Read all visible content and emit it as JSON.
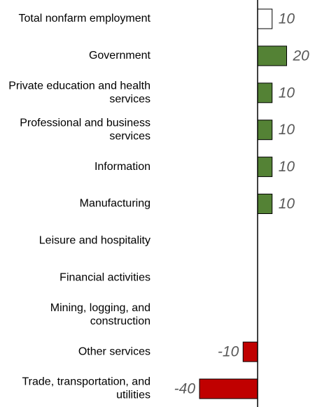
{
  "chart_data": {
    "type": "bar",
    "orientation": "horizontal",
    "categories": [
      "Total nonfarm employment",
      "Government",
      "Private education and health services",
      "Professional and business services",
      "Information",
      "Manufacturing",
      "Leisure and hospitality",
      "Financial activities",
      "Mining, logging, and construction",
      "Other services",
      "Trade, transportation, and utilities"
    ],
    "category_lines": [
      [
        "Total nonfarm employment"
      ],
      [
        "Government"
      ],
      [
        "Private education and health",
        "services"
      ],
      [
        "Professional and business",
        "services"
      ],
      [
        "Information"
      ],
      [
        "Manufacturing"
      ],
      [
        "Leisure and hospitality"
      ],
      [
        "Financial activities"
      ],
      [
        "Mining, logging, and",
        "construction"
      ],
      [
        "Other services"
      ],
      [
        "Trade, transportation, and",
        "utilities"
      ]
    ],
    "values": [
      10,
      20,
      10,
      10,
      10,
      10,
      0,
      0,
      0,
      -10,
      -40
    ],
    "data_labels": [
      "10",
      "20",
      "10",
      "10",
      "10",
      "10",
      "",
      "",
      "",
      "-10",
      "-40"
    ],
    "colors": {
      "total": "#ffffff",
      "positive": "#548235",
      "negative": "#c00000",
      "bar_border": "#000000",
      "axis": "#000000",
      "value_text": "#595959"
    },
    "title": "",
    "xlabel": "",
    "ylabel": "",
    "grid": false,
    "legend": "none"
  }
}
